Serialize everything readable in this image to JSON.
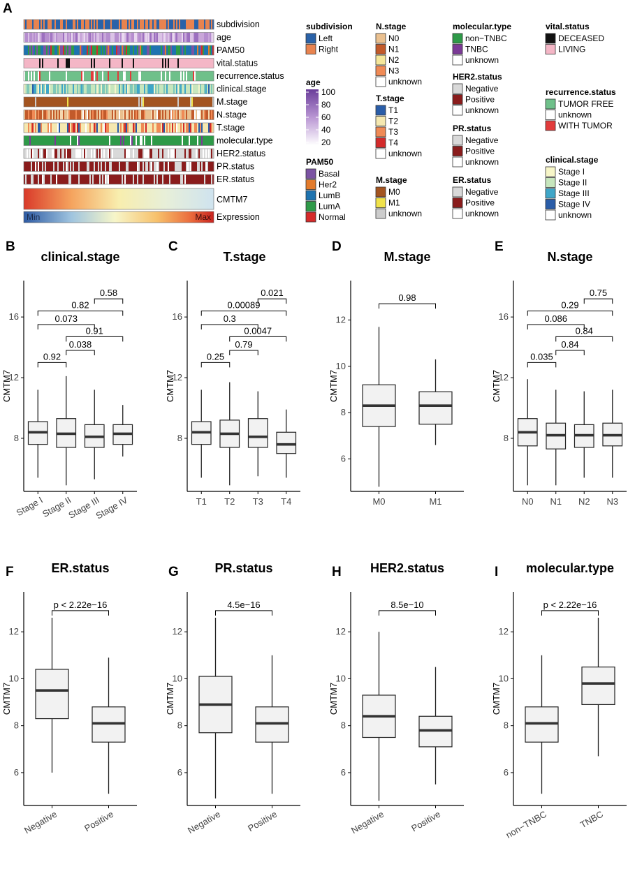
{
  "figure": {
    "panel_a_letter": "A",
    "heatmap": {
      "tracks": [
        {
          "label": "subdivision",
          "palette": [
            "#2a62a8",
            "#e8834f"
          ],
          "weights": [
            0.5,
            0.5
          ]
        },
        {
          "label": "age",
          "palette": [
            "#c9a7d9",
            "#b68ecf",
            "#dbc3e6",
            "#9c6fbf",
            "#ead9f0"
          ],
          "weights": [
            0.3,
            0.25,
            0.2,
            0.15,
            0.1
          ]
        },
        {
          "label": "PAM50",
          "palette": [
            "#1e73b0",
            "#7b53a3",
            "#2e9a48",
            "#e37b2c",
            "#d62a2a"
          ],
          "weights": [
            0.4,
            0.2,
            0.25,
            0.08,
            0.07
          ]
        },
        {
          "label": "vital.status",
          "palette": [
            "#f4b6c6",
            "#111111"
          ],
          "weights": [
            0.86,
            0.14
          ]
        },
        {
          "label": "recurrence.status",
          "palette": [
            "#6fc08a",
            "#ffffff",
            "#e23b3b"
          ],
          "weights": [
            0.84,
            0.1,
            0.06
          ]
        },
        {
          "label": "clinical.stage",
          "palette": [
            "#c7e6bd",
            "#7fc8b8",
            "#3fa6c8",
            "#f6f5cc",
            "#2a5da8"
          ],
          "weights": [
            0.45,
            0.2,
            0.2,
            0.1,
            0.05
          ]
        },
        {
          "label": "M.stage",
          "palette": [
            "#a35420",
            "#f0e24a",
            "#cccccc"
          ],
          "weights": [
            0.95,
            0.01,
            0.04
          ]
        },
        {
          "label": "N.stage",
          "palette": [
            "#eac08f",
            "#c25a2a",
            "#f08a55",
            "#f5d8b0",
            "#ffffff"
          ],
          "weights": [
            0.35,
            0.3,
            0.15,
            0.12,
            0.08
          ]
        },
        {
          "label": "T.stage",
          "palette": [
            "#f5e8b0",
            "#f08a55",
            "#2a5da8",
            "#d32a2a",
            "#ffffff"
          ],
          "weights": [
            0.5,
            0.25,
            0.12,
            0.08,
            0.05
          ]
        },
        {
          "label": "molecular.type",
          "palette": [
            "#2e9a48",
            "#7b3a96",
            "#ffffff"
          ],
          "weights": [
            0.85,
            0.08,
            0.07
          ]
        },
        {
          "label": "HER2.status",
          "palette": [
            "#d9d9d9",
            "#8a1c1c",
            "#ffffff"
          ],
          "weights": [
            0.6,
            0.15,
            0.25
          ]
        },
        {
          "label": "PR.status",
          "palette": [
            "#8a1c1c",
            "#d9d9d9",
            "#ffffff"
          ],
          "weights": [
            0.65,
            0.3,
            0.05
          ]
        },
        {
          "label": "ER.status",
          "palette": [
            "#8a1c1c",
            "#d9d9d9",
            "#ffffff"
          ],
          "weights": [
            0.75,
            0.2,
            0.05
          ]
        }
      ],
      "cmtm7_label": "CMTM7",
      "expression_label": "Expression",
      "scale_min_label": "Min",
      "scale_max_label": "Max"
    },
    "legends": [
      {
        "title": "subdivision",
        "items": [
          {
            "label": "Left",
            "color": "#2a62a8"
          },
          {
            "label": "Right",
            "color": "#e8834f"
          }
        ]
      },
      {
        "title": "age",
        "type": "gradient",
        "ticks": [
          "100",
          "80",
          "60",
          "40",
          "20"
        ],
        "colors": [
          "#6a3d9a",
          "#ffffff"
        ]
      },
      {
        "title": "PAM50",
        "items": [
          {
            "label": "Basal",
            "color": "#7b53a3"
          },
          {
            "label": "Her2",
            "color": "#e37b2c"
          },
          {
            "label": "LumB",
            "color": "#1e73b0"
          },
          {
            "label": "LumA",
            "color": "#2e9a48"
          },
          {
            "label": "Normal",
            "color": "#d62a2a"
          }
        ]
      },
      {
        "title": "N.stage",
        "items": [
          {
            "label": "N0",
            "color": "#eac08f"
          },
          {
            "label": "N1",
            "color": "#c25a2a"
          },
          {
            "label": "N2",
            "color": "#f5e79a"
          },
          {
            "label": "N3",
            "color": "#f08a55"
          },
          {
            "label": "unknown",
            "color": "#ffffff"
          }
        ]
      },
      {
        "title": "T.stage",
        "items": [
          {
            "label": "T1",
            "color": "#2a5da8"
          },
          {
            "label": "T2",
            "color": "#f5e8b0"
          },
          {
            "label": "T3",
            "color": "#f08a55"
          },
          {
            "label": "T4",
            "color": "#d32a2a"
          },
          {
            "label": "unknown",
            "color": "#ffffff"
          }
        ]
      },
      {
        "title": "M.stage",
        "items": [
          {
            "label": "M0",
            "color": "#a35420"
          },
          {
            "label": "M1",
            "color": "#f0e24a"
          },
          {
            "label": "unknown",
            "color": "#cccccc"
          }
        ]
      },
      {
        "title": "molecular.type",
        "items": [
          {
            "label": "non−TNBC",
            "color": "#2e9a48"
          },
          {
            "label": "TNBC",
            "color": "#7b3a96"
          },
          {
            "label": "unknown",
            "color": "#ffffff"
          }
        ]
      },
      {
        "title": "HER2.status",
        "items": [
          {
            "label": "Negative",
            "color": "#d9d9d9"
          },
          {
            "label": "Positive",
            "color": "#8a1c1c"
          },
          {
            "label": "unknown",
            "color": "#ffffff"
          }
        ]
      },
      {
        "title": "PR.status",
        "items": [
          {
            "label": "Negative",
            "color": "#d9d9d9"
          },
          {
            "label": "Positive",
            "color": "#8a1c1c"
          },
          {
            "label": "unknown",
            "color": "#ffffff"
          }
        ]
      },
      {
        "title": "ER.status",
        "items": [
          {
            "label": "Negative",
            "color": "#d9d9d9"
          },
          {
            "label": "Positive",
            "color": "#8a1c1c"
          },
          {
            "label": "unknown",
            "color": "#ffffff"
          }
        ]
      },
      {
        "title": "vital.status",
        "items": [
          {
            "label": "DECEASED",
            "color": "#111111"
          },
          {
            "label": "LIVING",
            "color": "#f4b6c6"
          }
        ]
      },
      {
        "title": "recurrence.status",
        "items": [
          {
            "label": "TUMOR FREE",
            "color": "#6fc08a"
          },
          {
            "label": "unknown",
            "color": "#ffffff"
          },
          {
            "label": "WITH TUMOR",
            "color": "#e23b3b"
          }
        ]
      },
      {
        "title": "clinical.stage",
        "items": [
          {
            "label": "Stage I",
            "color": "#f7f6c8"
          },
          {
            "label": "Stage II",
            "color": "#c7e6bd"
          },
          {
            "label": "Stage III",
            "color": "#3fa6c8"
          },
          {
            "label": "Stage IV",
            "color": "#2a5da8"
          },
          {
            "label": "unknown",
            "color": "#ffffff"
          }
        ]
      }
    ]
  },
  "chart_data": [
    {
      "letter": "B",
      "type": "boxplot",
      "title": "clinical.stage",
      "ylabel": "CMTM7",
      "ylim": [
        4.5,
        18.4
      ],
      "yticks": [
        8,
        12,
        16
      ],
      "rotate_x": true,
      "categories": [
        "Stage I",
        "Stage II",
        "Stage III",
        "Stage IV"
      ],
      "boxes": [
        {
          "min": 5.4,
          "q1": 7.6,
          "median": 8.4,
          "q3": 9.1,
          "max": 11.2
        },
        {
          "min": 4.9,
          "q1": 7.4,
          "median": 8.3,
          "q3": 9.3,
          "max": 12.1
        },
        {
          "min": 5.3,
          "q1": 7.4,
          "median": 8.1,
          "q3": 8.9,
          "max": 11.2
        },
        {
          "min": 6.8,
          "q1": 7.6,
          "median": 8.3,
          "q3": 8.9,
          "max": 10.2
        }
      ],
      "comparisons": [
        {
          "a": 1,
          "b": 2,
          "p": "0.92",
          "y": 13.0
        },
        {
          "a": 2,
          "b": 3,
          "p": "0.038",
          "y": 13.8
        },
        {
          "a": 2,
          "b": 4,
          "p": "0.91",
          "y": 14.7
        },
        {
          "a": 1,
          "b": 3,
          "p": "0.073",
          "y": 15.5
        },
        {
          "a": 1,
          "b": 4,
          "p": "0.82",
          "y": 16.4
        },
        {
          "a": 3,
          "b": 4,
          "p": "0.58",
          "y": 17.2
        }
      ]
    },
    {
      "letter": "C",
      "type": "boxplot",
      "title": "T.stage",
      "ylabel": "CMTM7",
      "ylim": [
        4.5,
        18.4
      ],
      "yticks": [
        8,
        12,
        16
      ],
      "rotate_x": false,
      "categories": [
        "T1",
        "T2",
        "T3",
        "T4"
      ],
      "boxes": [
        {
          "min": 5.4,
          "q1": 7.6,
          "median": 8.4,
          "q3": 9.1,
          "max": 11.2
        },
        {
          "min": 4.9,
          "q1": 7.4,
          "median": 8.3,
          "q3": 9.2,
          "max": 11.7
        },
        {
          "min": 5.5,
          "q1": 7.4,
          "median": 8.1,
          "q3": 9.3,
          "max": 11.1
        },
        {
          "min": 5.4,
          "q1": 7.0,
          "median": 7.6,
          "q3": 8.4,
          "max": 9.9
        }
      ],
      "comparisons": [
        {
          "a": 1,
          "b": 2,
          "p": "0.25",
          "y": 13.0
        },
        {
          "a": 2,
          "b": 3,
          "p": "0.79",
          "y": 13.8
        },
        {
          "a": 2,
          "b": 4,
          "p": "0.0047",
          "y": 14.7
        },
        {
          "a": 1,
          "b": 3,
          "p": "0.3",
          "y": 15.5
        },
        {
          "a": 1,
          "b": 4,
          "p": "0.00089",
          "y": 16.4
        },
        {
          "a": 3,
          "b": 4,
          "p": "0.021",
          "y": 17.2
        }
      ]
    },
    {
      "letter": "D",
      "type": "boxplot",
      "title": "M.stage",
      "ylabel": "CMTM7",
      "ylim": [
        4.6,
        13.7
      ],
      "yticks": [
        6,
        8,
        10,
        12
      ],
      "rotate_x": false,
      "categories": [
        "M0",
        "M1"
      ],
      "boxes": [
        {
          "min": 4.8,
          "q1": 7.4,
          "median": 8.3,
          "q3": 9.2,
          "max": 11.7
        },
        {
          "min": 6.6,
          "q1": 7.5,
          "median": 8.3,
          "q3": 8.9,
          "max": 10.3
        }
      ],
      "comparisons": [
        {
          "a": 1,
          "b": 2,
          "p": "0.98",
          "y": 12.7
        }
      ]
    },
    {
      "letter": "E",
      "type": "boxplot",
      "title": "N.stage",
      "ylabel": "CMTM7",
      "ylim": [
        4.5,
        18.4
      ],
      "yticks": [
        8,
        12,
        16
      ],
      "rotate_x": false,
      "categories": [
        "N0",
        "N1",
        "N2",
        "N3"
      ],
      "boxes": [
        {
          "min": 4.9,
          "q1": 7.5,
          "median": 8.4,
          "q3": 9.3,
          "max": 11.9
        },
        {
          "min": 4.9,
          "q1": 7.3,
          "median": 8.2,
          "q3": 9.0,
          "max": 11.2
        },
        {
          "min": 5.4,
          "q1": 7.4,
          "median": 8.2,
          "q3": 8.9,
          "max": 11.1
        },
        {
          "min": 5.4,
          "q1": 7.5,
          "median": 8.2,
          "q3": 9.0,
          "max": 11.2
        }
      ],
      "comparisons": [
        {
          "a": 1,
          "b": 2,
          "p": "0.035",
          "y": 13.0
        },
        {
          "a": 2,
          "b": 3,
          "p": "0.84",
          "y": 13.8
        },
        {
          "a": 2,
          "b": 4,
          "p": "0.84",
          "y": 14.7
        },
        {
          "a": 1,
          "b": 3,
          "p": "0.086",
          "y": 15.5
        },
        {
          "a": 1,
          "b": 4,
          "p": "0.29",
          "y": 16.4
        },
        {
          "a": 3,
          "b": 4,
          "p": "0.75",
          "y": 17.2
        }
      ]
    },
    {
      "letter": "F",
      "type": "boxplot",
      "title": "ER.status",
      "ylabel": "CMTM7",
      "ylim": [
        4.6,
        13.7
      ],
      "yticks": [
        6,
        8,
        10,
        12
      ],
      "rotate_x": true,
      "categories": [
        "Negative",
        "Positive"
      ],
      "boxes": [
        {
          "min": 6.0,
          "q1": 8.3,
          "median": 9.5,
          "q3": 10.4,
          "max": 12.6
        },
        {
          "min": 5.1,
          "q1": 7.3,
          "median": 8.1,
          "q3": 8.8,
          "max": 10.9
        }
      ],
      "comparisons": [
        {
          "a": 1,
          "b": 2,
          "p": "p < 2.22e−16",
          "y": 12.9
        }
      ]
    },
    {
      "letter": "G",
      "type": "boxplot",
      "title": "PR.status",
      "ylabel": "CMTM7",
      "ylim": [
        4.6,
        13.7
      ],
      "yticks": [
        6,
        8,
        10,
        12
      ],
      "rotate_x": true,
      "categories": [
        "Negative",
        "Positive"
      ],
      "boxes": [
        {
          "min": 4.9,
          "q1": 7.7,
          "median": 8.9,
          "q3": 10.1,
          "max": 12.6
        },
        {
          "min": 5.1,
          "q1": 7.3,
          "median": 8.1,
          "q3": 8.8,
          "max": 11.0
        }
      ],
      "comparisons": [
        {
          "a": 1,
          "b": 2,
          "p": "4.5e−16",
          "y": 12.9
        }
      ]
    },
    {
      "letter": "H",
      "type": "boxplot",
      "title": "HER2.status",
      "ylabel": "CMTM7",
      "ylim": [
        4.6,
        13.7
      ],
      "yticks": [
        6,
        8,
        10,
        12
      ],
      "rotate_x": true,
      "categories": [
        "Negative",
        "Positive"
      ],
      "boxes": [
        {
          "min": 4.8,
          "q1": 7.5,
          "median": 8.4,
          "q3": 9.3,
          "max": 12.0
        },
        {
          "min": 5.5,
          "q1": 7.1,
          "median": 7.8,
          "q3": 8.4,
          "max": 10.5
        }
      ],
      "comparisons": [
        {
          "a": 1,
          "b": 2,
          "p": "8.5e−10",
          "y": 12.9
        }
      ]
    },
    {
      "letter": "I",
      "type": "boxplot",
      "title": "molecular.type",
      "ylabel": "CMTM7",
      "ylim": [
        4.6,
        13.7
      ],
      "yticks": [
        6,
        8,
        10,
        12
      ],
      "rotate_x": true,
      "categories": [
        "non−TNBC",
        "TNBC"
      ],
      "boxes": [
        {
          "min": 5.1,
          "q1": 7.3,
          "median": 8.1,
          "q3": 8.8,
          "max": 11.0
        },
        {
          "min": 6.7,
          "q1": 8.9,
          "median": 9.8,
          "q3": 10.5,
          "max": 12.6
        }
      ],
      "comparisons": [
        {
          "a": 1,
          "b": 2,
          "p": "p < 2.22e−16",
          "y": 12.9
        }
      ]
    }
  ]
}
